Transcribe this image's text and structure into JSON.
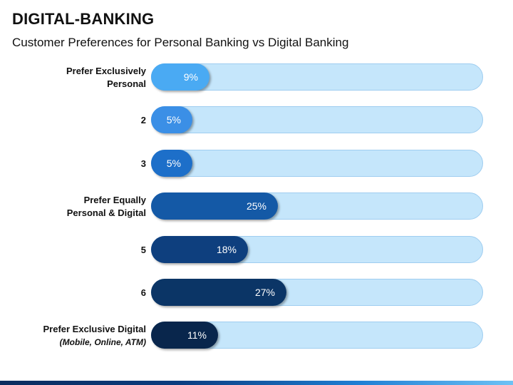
{
  "header": {
    "title": "DIGITAL-BANKING",
    "subtitle": "Customer Preferences for Personal Banking vs Digital Banking"
  },
  "chart_data": {
    "type": "bar",
    "orientation": "horizontal",
    "title": "Customer Preferences for Personal Banking vs Digital Banking",
    "categories": [
      "Prefer Exclusively Personal",
      "2",
      "3",
      "Prefer Equally Personal & Digital",
      "5",
      "6",
      "Prefer Exclusive Digital (Mobile, Online, ATM)"
    ],
    "category_lines": [
      [
        "Prefer Exclusively",
        "Personal"
      ],
      [
        "2"
      ],
      [
        "3"
      ],
      [
        "Prefer Equally",
        "Personal & Digital"
      ],
      [
        "5"
      ],
      [
        "6"
      ],
      [
        "Prefer Exclusive Digital",
        "(Mobile, Online, ATM)"
      ]
    ],
    "values": [
      9,
      5,
      5,
      25,
      18,
      27,
      11
    ],
    "value_labels": [
      "9%",
      "5%",
      "5%",
      "25%",
      "18%",
      "27%",
      "11%"
    ],
    "xlim": [
      0,
      100
    ],
    "bar_colors": [
      "#4aaaf3",
      "#3b8fe6",
      "#1d6fc9",
      "#1459a6",
      "#0e3f7e",
      "#0b3566",
      "#09264c"
    ],
    "track_color": "#c5e6fb",
    "grid": false
  }
}
